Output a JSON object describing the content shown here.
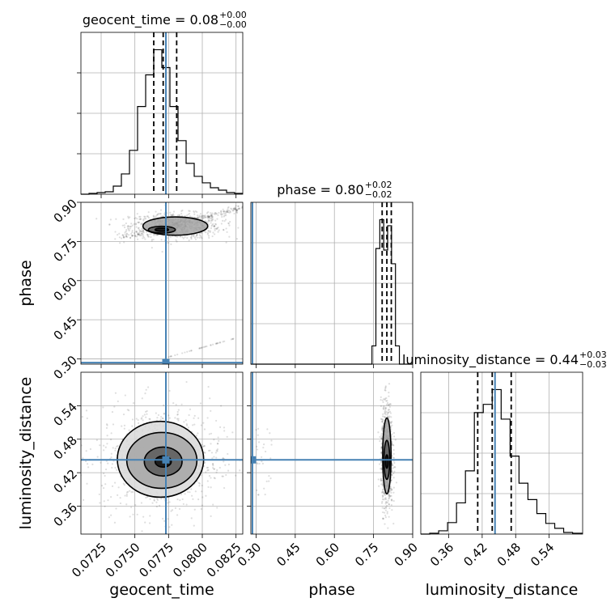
{
  "chart_data": {
    "type": "corner",
    "parameters": [
      "geocent_time",
      "phase",
      "luminosity_distance"
    ],
    "xlabels": [
      "geocent_time",
      "phase",
      "luminosity_distance"
    ],
    "ylabels": [
      "phase",
      "luminosity_distance"
    ],
    "ranges": {
      "geocent_time": [
        0.071,
        0.083
      ],
      "phase": [
        0.28,
        0.9
      ],
      "luminosity_distance": [
        0.31,
        0.6
      ]
    },
    "ticks": {
      "geocent_time": [
        "0.0725",
        "0.0750",
        "0.0775",
        "0.0800",
        "0.0825"
      ],
      "phase": [
        "0.30",
        "0.45",
        "0.60",
        "0.75",
        "0.90"
      ],
      "luminosity_distance": [
        "0.36",
        "0.42",
        "0.48",
        "0.54"
      ]
    },
    "titles": [
      {
        "param": "geocent_time",
        "text": "geocent_time = 0.08",
        "plus": "+0.00",
        "minus": "−0.00"
      },
      {
        "param": "phase",
        "text": "phase = 0.80",
        "plus": "+0.02",
        "minus": "−0.02"
      },
      {
        "param": "luminosity_distance",
        "text": "luminosity_distance = 0.44",
        "plus": "+0.03",
        "minus": "−0.03"
      }
    ],
    "truths": {
      "geocent_time": 0.0773,
      "phase": 0.286,
      "luminosity_distance": 0.443
    },
    "quantiles": {
      "geocent_time": [
        0.0764,
        0.0771,
        0.0781
      ],
      "phase": [
        0.783,
        0.801,
        0.818
      ],
      "luminosity_distance": [
        0.412,
        0.438,
        0.472
      ]
    },
    "hist_geocent_time": {
      "edges": [
        0.071,
        0.0716,
        0.0722,
        0.0728,
        0.0734,
        0.074,
        0.0746,
        0.0752,
        0.0758,
        0.0764,
        0.077,
        0.0776,
        0.0782,
        0.0788,
        0.0794,
        0.08,
        0.0806,
        0.0812,
        0.0818,
        0.0824,
        0.083
      ],
      "counts": [
        0,
        1,
        2,
        3,
        10,
        25,
        54,
        108,
        147,
        178,
        156,
        108,
        66,
        38,
        22,
        14,
        8,
        5,
        2,
        1
      ]
    },
    "hist_phase": {
      "edges": [
        0.28,
        0.744,
        0.759,
        0.774,
        0.789,
        0.804,
        0.819,
        0.834,
        0.849,
        0.9
      ],
      "counts": [
        0,
        24,
        152,
        190,
        150,
        182,
        132,
        24,
        0
      ]
    },
    "hist_luminosity_distance": {
      "edges": [
        0.31,
        0.326,
        0.342,
        0.358,
        0.374,
        0.39,
        0.406,
        0.422,
        0.438,
        0.454,
        0.47,
        0.486,
        0.502,
        0.518,
        0.534,
        0.55,
        0.566,
        0.582,
        0.6
      ],
      "counts": [
        0,
        1,
        4,
        14,
        38,
        77,
        148,
        158,
        176,
        140,
        95,
        62,
        42,
        25,
        13,
        7,
        2,
        1
      ]
    },
    "contour_phase_vs_time": {
      "levels": [
        {
          "cx": 0.077,
          "cy": 0.795,
          "rx": 0.0005,
          "ry": 0.006
        },
        {
          "cx": 0.077,
          "cy": 0.795,
          "rx": 0.001,
          "ry": 0.013
        },
        {
          "cx": 0.078,
          "cy": 0.809,
          "rx": 0.0024,
          "ry": 0.035
        }
      ]
    },
    "contour_dist_vs_time": {
      "levels": [
        {
          "cx": 0.0771,
          "cy": 0.44,
          "rx": 0.0006,
          "ry": 0.01
        },
        {
          "cx": 0.0771,
          "cy": 0.44,
          "rx": 0.0014,
          "ry": 0.026
        },
        {
          "cx": 0.077,
          "cy": 0.442,
          "rx": 0.0026,
          "ry": 0.05
        },
        {
          "cx": 0.0769,
          "cy": 0.444,
          "rx": 0.0032,
          "ry": 0.068
        }
      ]
    },
    "contour_dist_vs_phase": {
      "levels": [
        {
          "cx": 0.801,
          "cy": 0.44,
          "rx": 0.005,
          "ry": 0.012
        },
        {
          "cx": 0.801,
          "cy": 0.443,
          "rx": 0.011,
          "ry": 0.035
        },
        {
          "cx": 0.801,
          "cy": 0.45,
          "rx": 0.016,
          "ry": 0.068
        }
      ]
    },
    "colors": {
      "truth": "#4682b4",
      "hist": "#000000",
      "grid": "#b0b0b0"
    }
  }
}
